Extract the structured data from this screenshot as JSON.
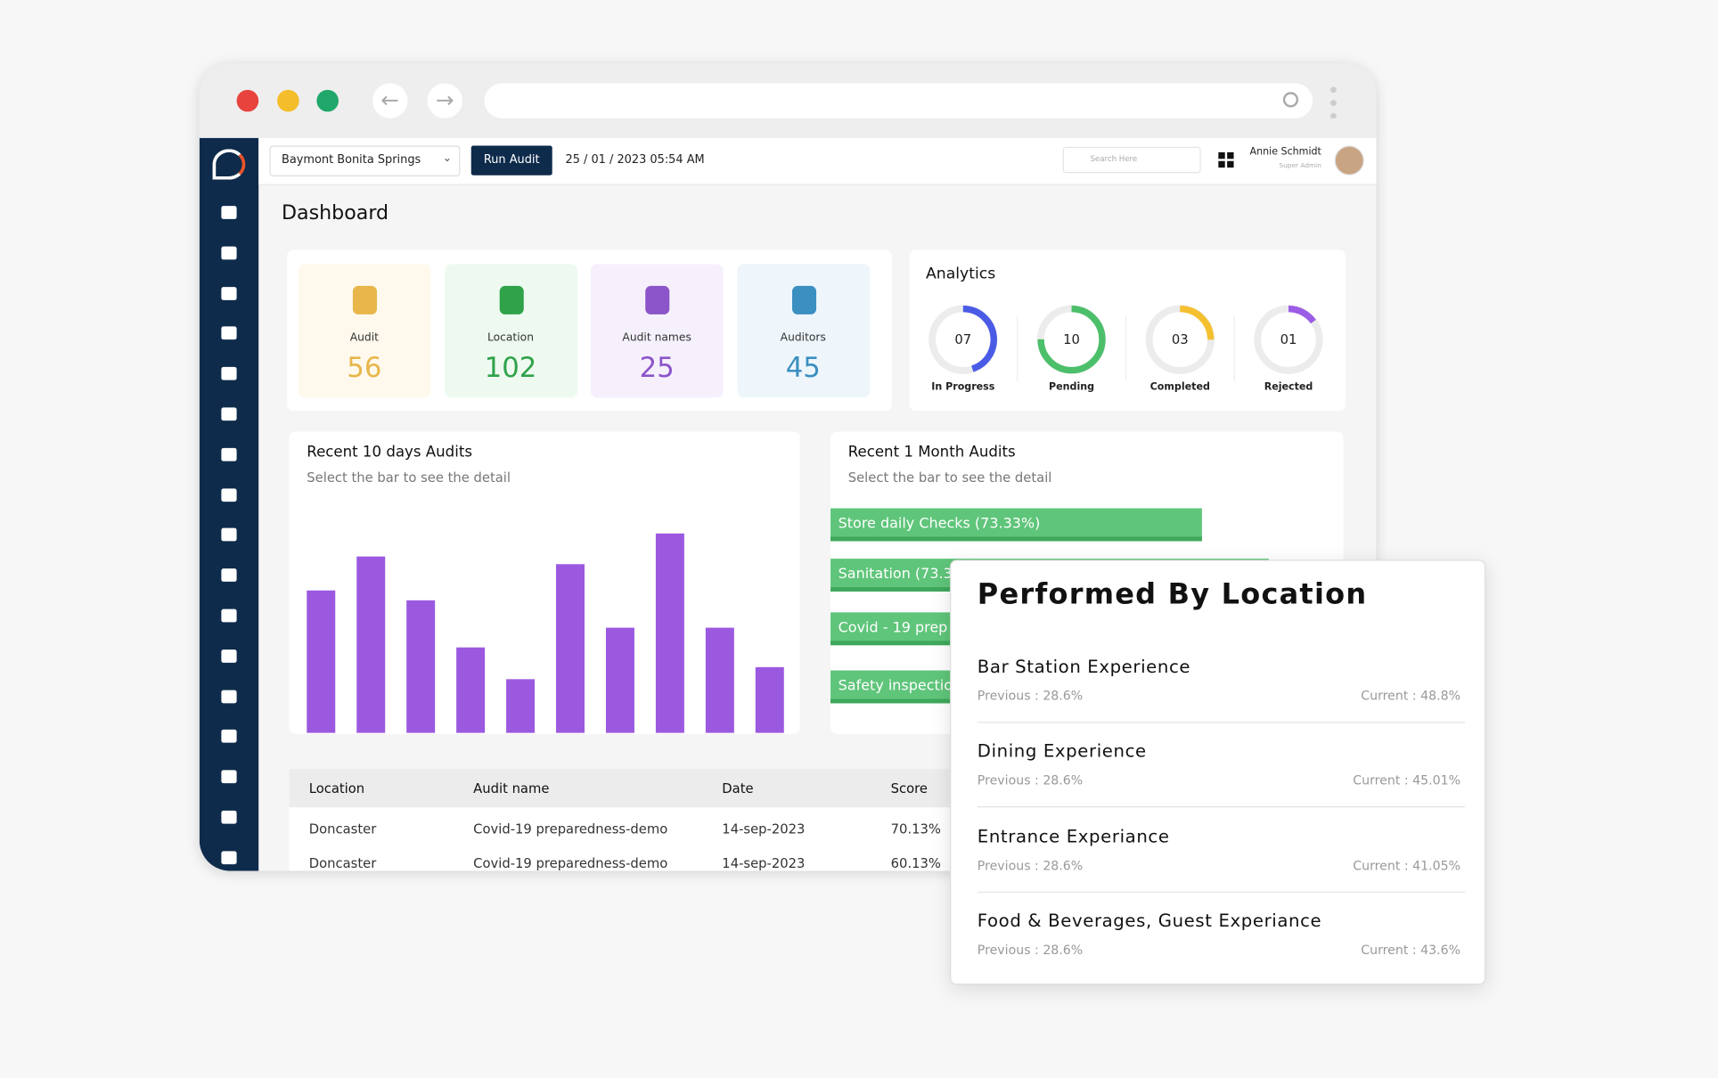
{
  "header": {
    "location": "Baymont Bonita Springs",
    "run_button": "Run Audit",
    "datetime": "25 / 01 / 2023  05:54 AM",
    "search_placeholder": "Search Here",
    "user_name": "Annie Schmidt",
    "user_role": "Super Admin"
  },
  "page_title": "Dashboard",
  "stats": [
    {
      "label": "Audit",
      "value": 56
    },
    {
      "label": "Location",
      "value": 102
    },
    {
      "label": "Audit names",
      "value": 25
    },
    {
      "label": "Auditors",
      "value": 45
    }
  ],
  "analytics": {
    "title": "Analytics",
    "items": [
      {
        "label": "In Progress",
        "count": {
          "value": 7,
          "label": "07"
        },
        "percent": 45,
        "color": "#4a5be6"
      },
      {
        "label": "Pending",
        "count": 10,
        "percent": 75,
        "color": "#4cbf6a"
      },
      {
        "label": "Completed",
        "count": {
          "value": 3,
          "label": "03"
        },
        "percent": 25,
        "color": "#f4c030"
      },
      {
        "label": "Rejected",
        "count": {
          "value": 1,
          "label": "01"
        },
        "percent": 15,
        "color": "#9b5de5"
      }
    ]
  },
  "chart_data": {
    "type": "bar",
    "title": "Recent 10 days Audits",
    "subtitle": "Select the bar to see the detail",
    "color": "#9b59e0",
    "values": [
      130,
      161,
      121,
      78,
      49,
      154,
      96,
      182,
      96,
      60
    ]
  },
  "month_audits": {
    "title": "Recent 1 Month Audits",
    "subtitle": "Select the bar to see the detail",
    "bars": [
      "Store daily Checks (73.33%)",
      "Sanitation (73.3",
      "Covid - 19 prep",
      "Safety inspectio"
    ]
  },
  "table": {
    "columns": [
      "Location",
      "Audit name",
      "Date",
      "Score"
    ],
    "rows": [
      [
        "Doncaster",
        "Covid-19 preparedness-demo",
        "14-sep-2023",
        "70.13%"
      ],
      [
        "Doncaster",
        "Covid-19 preparedness-demo",
        "14-sep-2023",
        "60.13%"
      ]
    ]
  },
  "performed": {
    "title": "Performed By Location",
    "items": [
      {
        "name": "Bar Station Experience",
        "previous": "Previous : 28.6%",
        "current": "Current : 48.8%"
      },
      {
        "name": "Dining Experience",
        "previous": "Previous : 28.6%",
        "current": "Current : 45.01%"
      },
      {
        "name": "Entrance Experiance",
        "previous": "Previous : 28.6%",
        "current": "Current : 41.05%"
      },
      {
        "name": "Food & Beverages, Guest Experiance",
        "previous": "Previous : 28.6%",
        "current": "Current : 43.6%"
      }
    ]
  }
}
